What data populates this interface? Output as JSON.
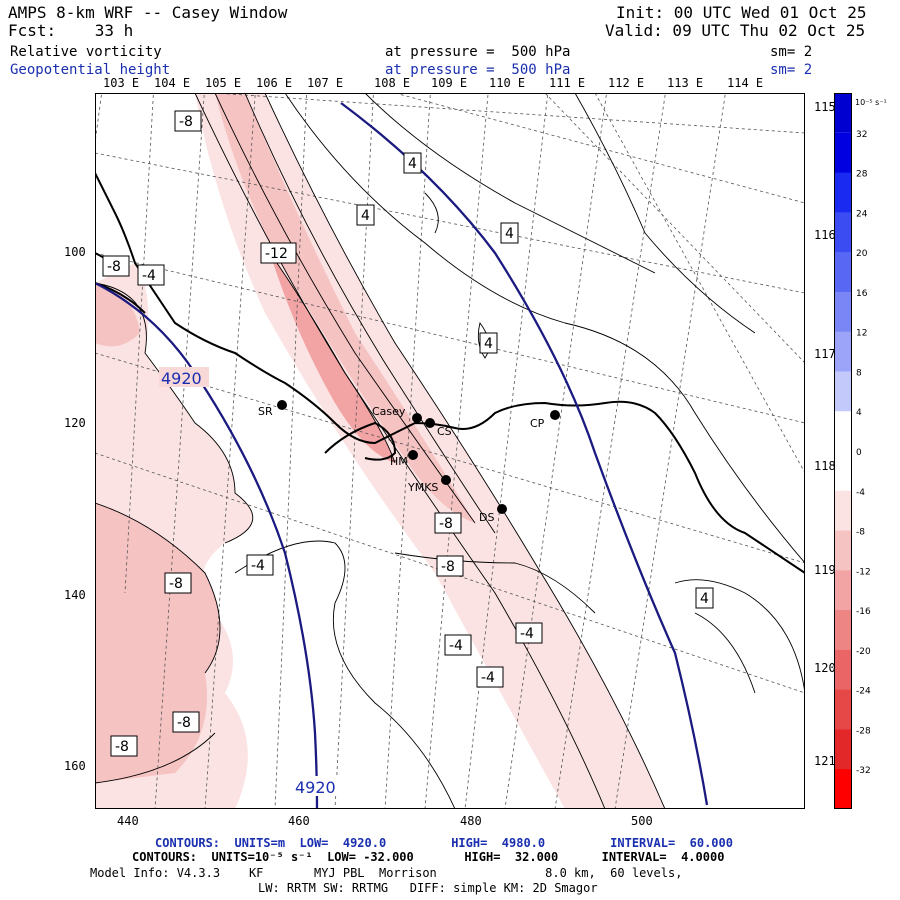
{
  "header": {
    "title": "AMPS 8-km WRF -- Casey Window",
    "fcst": "Fcst:    33 h",
    "init": "Init: 00 UTC Wed 01 Oct 25",
    "valid": "Valid: 09 UTC Thu 02 Oct 25",
    "field1": "Relative vorticity",
    "field1_level": "at pressure =  500 hPa",
    "field1_sm": "sm= 2",
    "field2": "Geopotential height",
    "field2_level": "at pressure =  500 hPa",
    "field2_sm": "sm= 2"
  },
  "longitude_labels_top": [
    "103 E",
    "104 E",
    "105 E",
    "106 E",
    "107 E",
    "108 E",
    "109 E",
    "110 E",
    "111 E",
    "112 E",
    "113 E",
    "114 E"
  ],
  "longitude_labels_right": [
    "115 E",
    "116 E",
    "117 E",
    "118 E",
    "119 E",
    "120 E",
    "121 E"
  ],
  "y_ticks": [
    "100",
    "120",
    "140",
    "160"
  ],
  "x_ticks": [
    "440",
    "460",
    "480",
    "500"
  ],
  "stations": [
    {
      "name": "SR"
    },
    {
      "name": "Casey"
    },
    {
      "name": "CS"
    },
    {
      "name": "HM"
    },
    {
      "name": "YMKS"
    },
    {
      "name": "DS"
    },
    {
      "name": "CP"
    }
  ],
  "vorticity_contour_labels": [
    "-8",
    "4",
    "4",
    "4",
    "-12",
    "-8",
    "-4",
    "4",
    "-8",
    "-8",
    "-4",
    "-8",
    "-4",
    "-4",
    "-4",
    "4",
    "-8",
    "-8"
  ],
  "height_contour_labels": [
    "4920",
    "4920"
  ],
  "colorbar": {
    "unit": "10⁻⁵ s⁻¹",
    "ticks": [
      "32",
      "28",
      "24",
      "20",
      "16",
      "12",
      "8",
      "4",
      "0",
      "-4",
      "-8",
      "-12",
      "-16",
      "-20",
      "-24",
      "-28",
      "-32"
    ],
    "colors": [
      "#0000e0",
      "#1a2af0",
      "#3b4df2",
      "#5868f4",
      "#7a86f6",
      "#9ba4f8",
      "#c4c9fb",
      "#ffffff",
      "#ffffff",
      "#fbe3e3",
      "#f6c3c3",
      "#f2a3a3",
      "#ee8585",
      "#ea6666",
      "#e64747",
      "#e22828",
      "#ff0000"
    ]
  },
  "footer": {
    "line1": "CONTOURS:  UNITS=m  LOW=  4920.0         HIGH=  4980.0         INTERVAL=  60.000",
    "line2": "CONTOURS:  UNITS=10⁻⁵ s⁻¹  LOW= -32.000       HIGH=  32.000      INTERVAL=  4.0000",
    "line3": "Model Info: V4.3.3    KF       MYJ PBL  Morrison               8.0 km,  60 levels,",
    "line4": "LW: RRTM SW: RRTMG   DIFF: simple KM: 2D Smagor"
  }
}
